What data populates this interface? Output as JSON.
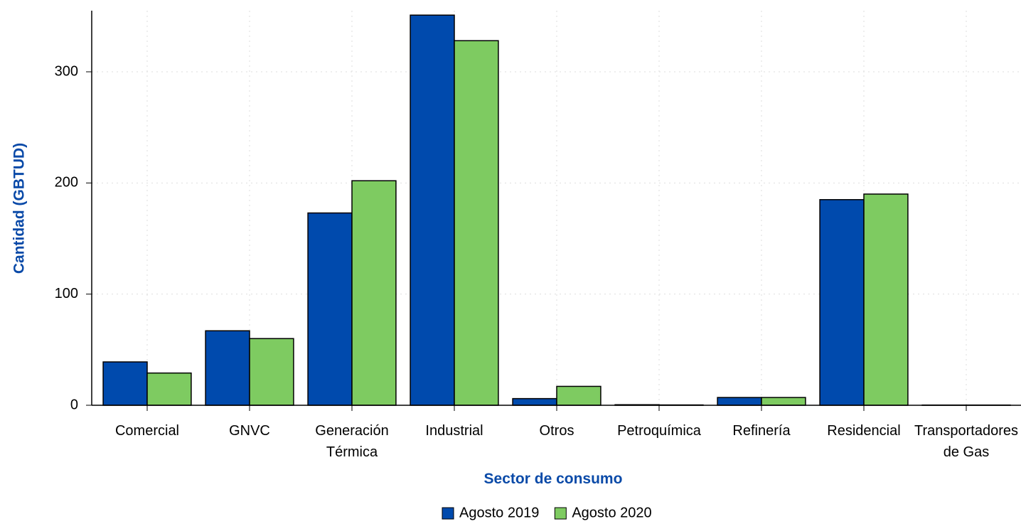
{
  "chart_data": {
    "type": "bar",
    "x_label": "Sector de consumo",
    "y_label": "Cantidad (GBTUD)",
    "categories": [
      "Comercial",
      "GNVC",
      "Generación Térmica",
      "Industrial",
      "Otros",
      "Petroquímica",
      "Refinería",
      "Residencial",
      "Transportadores de Gas"
    ],
    "series": [
      {
        "name": "Agosto 2019",
        "color": "#004aad",
        "values": [
          39,
          67,
          173,
          351,
          6,
          0.5,
          7,
          185,
          0.2
        ]
      },
      {
        "name": "Agosto 2020",
        "color": "#7ecb61",
        "values": [
          29,
          60,
          202,
          328,
          17,
          0.3,
          7,
          190,
          0.2
        ]
      }
    ],
    "ylim": [
      0,
      355
    ],
    "yticks": [
      0,
      100,
      200,
      300
    ],
    "grid": true,
    "legend": "bottom"
  }
}
